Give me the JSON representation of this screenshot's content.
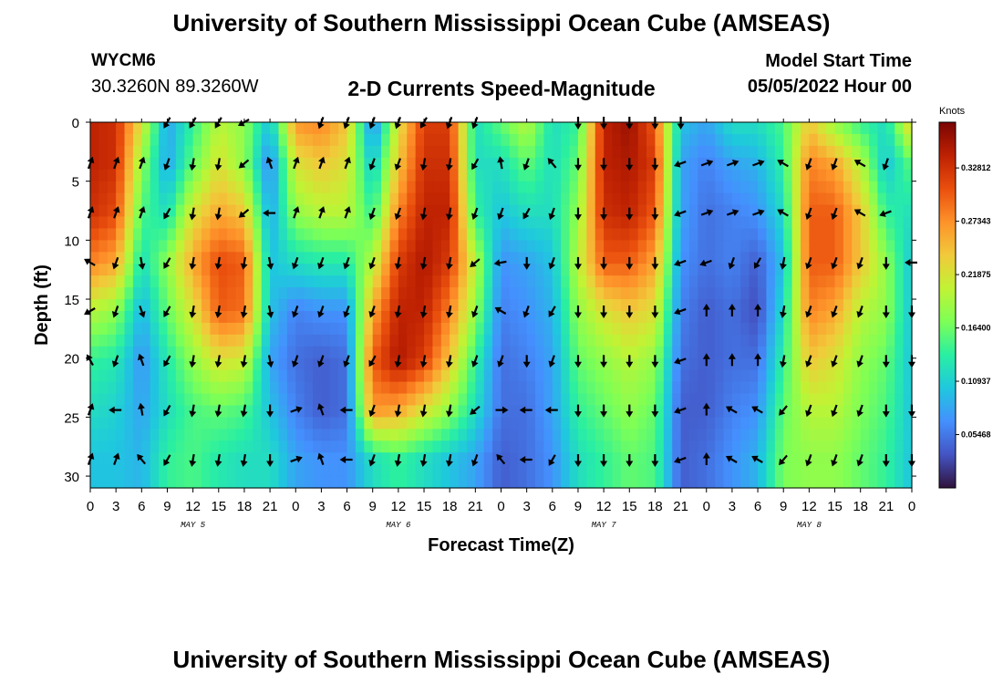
{
  "header": {
    "title": "University of Southern Mississippi Ocean Cube (AMSEAS)",
    "station_id": "WYCM6",
    "coords": "30.3260N  89.3260W",
    "subtitle": "2-D Currents Speed-Magnitude",
    "model_start_label": "Model Start Time",
    "model_start_value": "05/05/2022 Hour 00"
  },
  "footer": {
    "title": "University of Southern Mississippi Ocean Cube (AMSEAS)"
  },
  "chart_data": {
    "type": "heatmap",
    "title": "2-D Currents Speed-Magnitude",
    "xlabel": "Forecast Time(Z)",
    "ylabel": "Depth (ft)",
    "x_ticks": [
      "0",
      "3",
      "6",
      "9",
      "12",
      "15",
      "18",
      "21",
      "0",
      "3",
      "6",
      "9",
      "12",
      "15",
      "18",
      "21",
      "0",
      "3",
      "6",
      "9",
      "12",
      "15",
      "18",
      "21",
      "0",
      "3",
      "6",
      "9",
      "12",
      "15",
      "18",
      "21",
      "0"
    ],
    "day_labels": [
      "MAY 5",
      "MAY 6",
      "MAY 7",
      "MAY 8"
    ],
    "y_ticks": [
      "0",
      "5",
      "10",
      "15",
      "20",
      "25",
      "30"
    ],
    "y_range": [
      0,
      31
    ],
    "x_range_hours": [
      0,
      96
    ],
    "colorbar": {
      "title": "Knots",
      "labels": [
        "0.32812",
        "0.27343",
        "0.21875",
        "0.16400",
        "0.10937",
        "0.05468"
      ],
      "label_values": [
        0.32812,
        0.27343,
        0.21875,
        0.164,
        0.10937,
        0.05468
      ],
      "range": [
        0,
        0.375
      ],
      "colors": [
        "#30123b",
        "#4454c4",
        "#4490fe",
        "#1fc8de",
        "#29efa2",
        "#7dff56",
        "#c1f334",
        "#f1ca3a",
        "#fe922a",
        "#ea4f0d",
        "#be2102",
        "#7a0403"
      ]
    },
    "arrow_hours": [
      0,
      3,
      6,
      9,
      12,
      15,
      18,
      21,
      24,
      27,
      30,
      33,
      36,
      39,
      42,
      45,
      48,
      51,
      54,
      57,
      60,
      63,
      66,
      69,
      72,
      75,
      78,
      81,
      84,
      87,
      90,
      93,
      96
    ],
    "arrow_depths": [
      0,
      3.5,
      7.7,
      11.9,
      16,
      20.2,
      24.4,
      28.6
    ],
    "speed_profiles": [
      {
        "hour": 0,
        "speeds": [
          0.34,
          0.34,
          0.33,
          0.28,
          0.2,
          0.14,
          0.12,
          0.1
        ]
      },
      {
        "hour": 3,
        "speeds": [
          0.33,
          0.33,
          0.31,
          0.26,
          0.18,
          0.13,
          0.11,
          0.1
        ]
      },
      {
        "hour": 6,
        "speeds": [
          0.22,
          0.18,
          0.15,
          0.12,
          0.09,
          0.07,
          0.08,
          0.09
        ]
      },
      {
        "hour": 9,
        "speeds": [
          0.08,
          0.08,
          0.12,
          0.18,
          0.16,
          0.13,
          0.12,
          0.14
        ]
      },
      {
        "hour": 12,
        "speeds": [
          0.14,
          0.16,
          0.22,
          0.26,
          0.22,
          0.18,
          0.15,
          0.15
        ]
      },
      {
        "hour": 15,
        "speeds": [
          0.2,
          0.22,
          0.26,
          0.31,
          0.3,
          0.22,
          0.16,
          0.13
        ]
      },
      {
        "hour": 18,
        "speeds": [
          0.18,
          0.18,
          0.24,
          0.3,
          0.29,
          0.21,
          0.15,
          0.12
        ]
      },
      {
        "hour": 21,
        "speeds": [
          0.1,
          0.06,
          0.08,
          0.1,
          0.1,
          0.08,
          0.1,
          0.12
        ]
      },
      {
        "hour": 24,
        "speeds": [
          0.27,
          0.22,
          0.18,
          0.12,
          0.06,
          0.05,
          0.06,
          0.08
        ]
      },
      {
        "hour": 27,
        "speeds": [
          0.28,
          0.24,
          0.2,
          0.13,
          0.07,
          0.04,
          0.04,
          0.07
        ]
      },
      {
        "hour": 30,
        "speeds": [
          0.24,
          0.22,
          0.2,
          0.13,
          0.07,
          0.05,
          0.05,
          0.07
        ]
      },
      {
        "hour": 33,
        "speeds": [
          0.06,
          0.1,
          0.14,
          0.2,
          0.26,
          0.3,
          0.27,
          0.12
        ]
      },
      {
        "hour": 36,
        "speeds": [
          0.22,
          0.24,
          0.28,
          0.32,
          0.34,
          0.35,
          0.26,
          0.14
        ]
      },
      {
        "hour": 39,
        "speeds": [
          0.32,
          0.33,
          0.34,
          0.35,
          0.34,
          0.32,
          0.22,
          0.12
        ]
      },
      {
        "hour": 42,
        "speeds": [
          0.32,
          0.33,
          0.34,
          0.32,
          0.28,
          0.24,
          0.18,
          0.1
        ]
      },
      {
        "hour": 45,
        "speeds": [
          0.12,
          0.12,
          0.14,
          0.2,
          0.18,
          0.14,
          0.12,
          0.08
        ]
      },
      {
        "hour": 48,
        "speeds": [
          0.16,
          0.12,
          0.1,
          0.07,
          0.06,
          0.05,
          0.05,
          0.04
        ]
      },
      {
        "hour": 51,
        "speeds": [
          0.2,
          0.16,
          0.12,
          0.08,
          0.07,
          0.06,
          0.05,
          0.05
        ]
      },
      {
        "hour": 54,
        "speeds": [
          0.12,
          0.12,
          0.12,
          0.1,
          0.09,
          0.08,
          0.08,
          0.07
        ]
      },
      {
        "hour": 57,
        "speeds": [
          0.14,
          0.16,
          0.18,
          0.2,
          0.18,
          0.16,
          0.14,
          0.12
        ]
      },
      {
        "hour": 60,
        "speeds": [
          0.34,
          0.34,
          0.33,
          0.3,
          0.22,
          0.18,
          0.16,
          0.14
        ]
      },
      {
        "hour": 63,
        "speeds": [
          0.36,
          0.35,
          0.34,
          0.3,
          0.24,
          0.2,
          0.18,
          0.16
        ]
      },
      {
        "hour": 66,
        "speeds": [
          0.3,
          0.32,
          0.3,
          0.26,
          0.22,
          0.18,
          0.16,
          0.15
        ]
      },
      {
        "hour": 69,
        "speeds": [
          0.1,
          0.08,
          0.08,
          0.07,
          0.06,
          0.05,
          0.04,
          0.04
        ]
      },
      {
        "hour": 72,
        "speeds": [
          0.08,
          0.06,
          0.05,
          0.05,
          0.04,
          0.04,
          0.04,
          0.05
        ]
      },
      {
        "hour": 75,
        "speeds": [
          0.12,
          0.08,
          0.06,
          0.06,
          0.05,
          0.05,
          0.06,
          0.07
        ]
      },
      {
        "hour": 78,
        "speeds": [
          0.12,
          0.09,
          0.07,
          0.04,
          0.03,
          0.05,
          0.07,
          0.09
        ]
      },
      {
        "hour": 81,
        "speeds": [
          0.15,
          0.14,
          0.12,
          0.1,
          0.12,
          0.14,
          0.16,
          0.17
        ]
      },
      {
        "hour": 84,
        "speeds": [
          0.24,
          0.28,
          0.3,
          0.3,
          0.28,
          0.24,
          0.2,
          0.18
        ]
      },
      {
        "hour": 87,
        "speeds": [
          0.18,
          0.26,
          0.3,
          0.3,
          0.26,
          0.22,
          0.2,
          0.18
        ]
      },
      {
        "hour": 90,
        "speeds": [
          0.14,
          0.2,
          0.24,
          0.24,
          0.2,
          0.18,
          0.17,
          0.16
        ]
      },
      {
        "hour": 93,
        "speeds": [
          0.12,
          0.1,
          0.14,
          0.18,
          0.18,
          0.16,
          0.15,
          0.14
        ]
      },
      {
        "hour": 96,
        "speeds": [
          0.24,
          0.16,
          0.12,
          0.1,
          0.1,
          0.1,
          0.1,
          0.1
        ]
      }
    ],
    "arrow_directions_deg": [
      [
        null,
        20,
        20,
        300,
        240,
        330,
        20,
        20
      ],
      [
        null,
        20,
        20,
        200,
        200,
        200,
        270,
        20
      ],
      [
        null,
        20,
        20,
        170,
        160,
        340,
        350,
        320
      ],
      [
        210,
        200,
        210,
        210,
        210,
        210,
        210,
        210
      ],
      [
        210,
        190,
        190,
        190,
        190,
        190,
        190,
        190
      ],
      [
        210,
        190,
        190,
        190,
        190,
        190,
        190,
        190
      ],
      [
        240,
        230,
        230,
        190,
        190,
        190,
        190,
        190
      ],
      [
        null,
        340,
        270,
        170,
        170,
        170,
        180,
        180
      ],
      [
        null,
        20,
        20,
        200,
        200,
        200,
        70,
        70
      ],
      [
        200,
        20,
        20,
        200,
        200,
        200,
        340,
        340
      ],
      [
        200,
        20,
        20,
        200,
        200,
        200,
        270,
        270
      ],
      [
        200,
        200,
        200,
        200,
        200,
        210,
        200,
        200
      ],
      [
        200,
        200,
        200,
        190,
        190,
        190,
        190,
        190
      ],
      [
        210,
        190,
        190,
        190,
        190,
        190,
        190,
        190
      ],
      [
        200,
        190,
        190,
        190,
        190,
        190,
        190,
        190
      ],
      [
        200,
        210,
        200,
        230,
        200,
        200,
        230,
        200
      ],
      [
        null,
        350,
        200,
        260,
        300,
        200,
        90,
        320
      ],
      [
        null,
        200,
        210,
        180,
        200,
        180,
        270,
        270
      ],
      [
        null,
        320,
        200,
        200,
        210,
        200,
        270,
        210
      ],
      [
        180,
        180,
        180,
        180,
        180,
        180,
        180,
        180
      ],
      [
        180,
        180,
        180,
        180,
        180,
        180,
        180,
        180
      ],
      [
        180,
        180,
        180,
        180,
        180,
        180,
        180,
        180
      ],
      [
        180,
        180,
        180,
        180,
        180,
        180,
        180,
        180
      ],
      [
        180,
        250,
        250,
        250,
        250,
        250,
        250,
        250
      ],
      [
        null,
        70,
        70,
        250,
        0,
        0,
        0,
        0
      ],
      [
        null,
        70,
        70,
        200,
        0,
        0,
        300,
        300
      ],
      [
        null,
        70,
        70,
        210,
        0,
        0,
        300,
        300
      ],
      [
        null,
        300,
        300,
        190,
        190,
        190,
        220,
        220
      ],
      [
        null,
        200,
        200,
        200,
        200,
        200,
        200,
        200
      ],
      [
        null,
        200,
        200,
        200,
        200,
        200,
        200,
        200
      ],
      [
        null,
        300,
        300,
        200,
        200,
        200,
        200,
        200
      ],
      [
        null,
        200,
        250,
        180,
        180,
        180,
        180,
        180
      ],
      [
        null,
        null,
        null,
        270,
        180,
        180,
        180,
        180
      ]
    ]
  }
}
